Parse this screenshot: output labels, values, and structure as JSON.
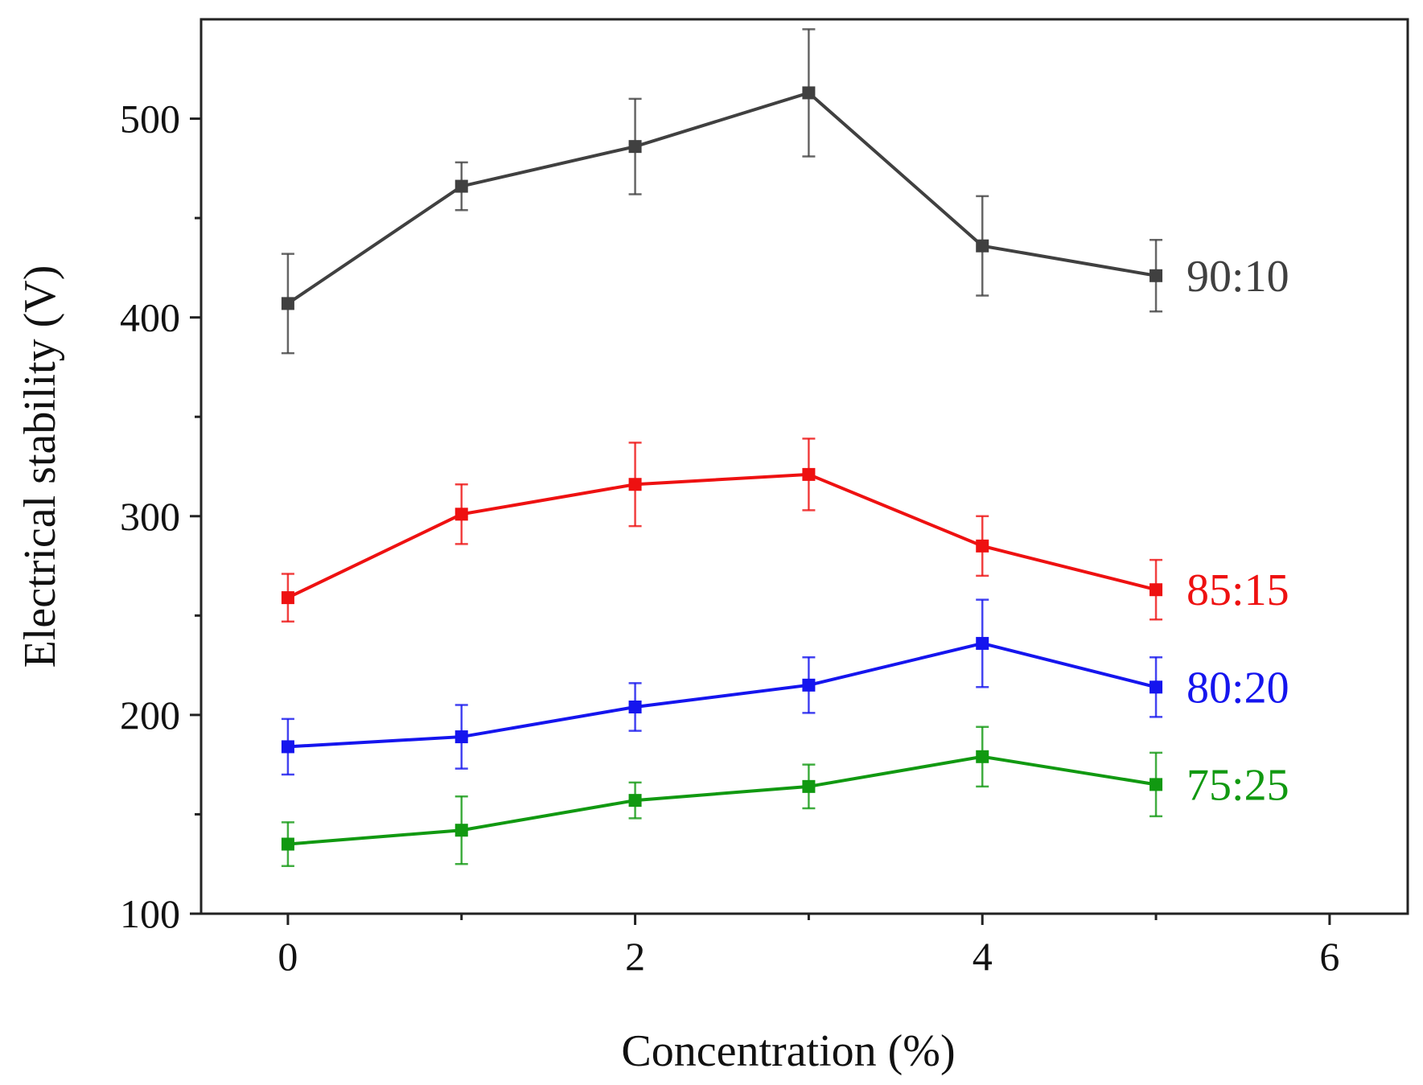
{
  "chart_data": {
    "type": "line",
    "title": "",
    "xlabel": "Concentration (%)",
    "ylabel": "Electrical stability (V)",
    "xlim": [
      -0.5,
      6.45
    ],
    "ylim": [
      100,
      550
    ],
    "xticks": [
      0,
      2,
      4,
      6
    ],
    "xminor": [
      1,
      3,
      5
    ],
    "yticks": [
      100,
      200,
      300,
      400,
      500
    ],
    "yminor": [
      150,
      250,
      350,
      450
    ],
    "tick_labels_x": [
      "0",
      "2",
      "4",
      "6"
    ],
    "tick_labels_y": [
      "100",
      "200",
      "300",
      "400",
      "500"
    ],
    "grid": false,
    "x": [
      0,
      1,
      2,
      3,
      4,
      5
    ],
    "series": [
      {
        "name": "90:10",
        "color": "#404040",
        "values": [
          407,
          466,
          486,
          513,
          436,
          421
        ],
        "errors": [
          25,
          12,
          24,
          32,
          25,
          18
        ]
      },
      {
        "name": "85:15",
        "color": "#ee1111",
        "values": [
          259,
          301,
          316,
          321,
          285,
          263
        ],
        "errors": [
          12,
          15,
          21,
          18,
          15,
          15
        ]
      },
      {
        "name": "80:20",
        "color": "#1515ee",
        "values": [
          184,
          189,
          204,
          215,
          236,
          214
        ],
        "errors": [
          14,
          16,
          12,
          14,
          22,
          15
        ]
      },
      {
        "name": "75:25",
        "color": "#119911",
        "values": [
          135,
          142,
          157,
          164,
          179,
          165
        ],
        "errors": [
          11,
          17,
          9,
          11,
          15,
          16
        ]
      }
    ]
  }
}
